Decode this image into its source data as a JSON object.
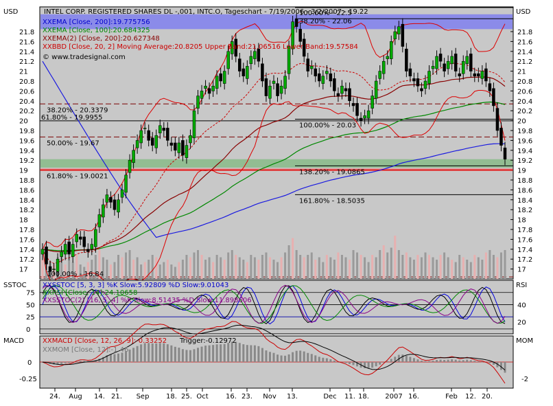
{
  "chart_data": {
    "type": "stock_candlestick_with_indicators",
    "currency": "USD",
    "price_panel": {
      "title": "INTEL CORP. REGISTERED SHARES DL -,001, INTC.O, Tageschart - 7/19/2006 - 3/2/2007 - 19.22",
      "ylim": [
        16.8,
        22.3
      ],
      "y_ticks": [
        17,
        17.2,
        17.4,
        17.6,
        17.8,
        18,
        18.2,
        18.4,
        18.6,
        18.8,
        19,
        19.2,
        19.4,
        19.6,
        19.8,
        20,
        20.2,
        20.4,
        20.6,
        20.8,
        21,
        21.2,
        21.4,
        21.6,
        21.8
      ],
      "legend": [
        {
          "text": "XXEMA [Close, 200]:19.775756",
          "color": "#0000cc"
        },
        {
          "text": "XXEMA [Close, 100]:20.684325",
          "color": "#008800"
        },
        {
          "text": "XXEMA(2) [Close, 200]:20.627348",
          "color": "#880000"
        },
        {
          "text": "XXBBD [Close, 20, 2] Moving Average:20.8205 Upper Band:21.06516 Lower Band:19.57584",
          "color": "#cc0000"
        }
      ],
      "credit": "© www.tradesignal.com",
      "fib_levels": [
        {
          "label": "38.20% - 20.3379",
          "value": 20.3379
        },
        {
          "label": "61.80% - 19.9955",
          "value": 19.9955
        },
        {
          "label": "50.00% - 19.67",
          "value": 19.67
        },
        {
          "label": "61.80% - 19.0021",
          "value": 19.0021
        },
        {
          "label": "100.00% - 20.03",
          "value": 20.03
        },
        {
          "label": "138.20% - 19.0865",
          "value": 19.0865
        },
        {
          "label": "161.80% - 18.5035",
          "value": 18.5035
        },
        {
          "label": "100.00% - 16.84",
          "value": 16.84
        },
        {
          "label": "100.00% - 22.5",
          "value": 22.5
        },
        {
          "label": "38.20% - 22.06",
          "value": 22.06
        }
      ],
      "bands": [
        {
          "from": 21.85,
          "to": 22.15,
          "color": "#8080ee"
        },
        {
          "from": 19.05,
          "to": 19.22,
          "color": "#88bb88"
        },
        {
          "from": 18.98,
          "to": 19.03,
          "color": "#ee6666"
        }
      ],
      "close": [
        17.4,
        17.1,
        16.95,
        17.0,
        17.2,
        17.35,
        17.5,
        17.3,
        17.5,
        17.7,
        17.6,
        17.45,
        17.35,
        17.5,
        17.8,
        18.1,
        18.3,
        18.5,
        18.35,
        18.2,
        18.4,
        18.6,
        18.9,
        19.2,
        19.4,
        19.6,
        19.8,
        19.85,
        19.6,
        19.5,
        19.7,
        19.9,
        19.8,
        19.6,
        19.5,
        19.4,
        19.55,
        19.3,
        19.5,
        19.7,
        20.2,
        20.5,
        20.6,
        20.7,
        20.55,
        20.7,
        20.9,
        20.8,
        21.0,
        21.4,
        21.6,
        21.3,
        21.0,
        20.9,
        21.1,
        21.3,
        21.4,
        21.2,
        20.8,
        20.5,
        20.7,
        20.8,
        20.5,
        20.7,
        20.9,
        21.5,
        22.0,
        21.9,
        21.6,
        21.3,
        21.0,
        21.1,
        20.9,
        20.8,
        20.9,
        21.0,
        20.8,
        20.6,
        20.5,
        20.7,
        20.6,
        20.4,
        20.3,
        20.1,
        20.0,
        20.1,
        20.2,
        20.5,
        20.8,
        21.0,
        21.2,
        21.3,
        21.6,
        21.8,
        21.9,
        21.5,
        21.0,
        20.9,
        20.8,
        20.7,
        20.6,
        20.8,
        21.0,
        21.1,
        21.3,
        21.2,
        21.0,
        21.2,
        21.3,
        21.0,
        20.9,
        21.2,
        21.3,
        21.0,
        20.9,
        20.9,
        21.0,
        20.8,
        20.6,
        20.3,
        19.8,
        19.5,
        19.22
      ],
      "volume": [
        0.4,
        0.55,
        0.35,
        0.3,
        0.45,
        0.5,
        0.3,
        0.4,
        0.35,
        0.5,
        0.3,
        0.25,
        0.35,
        0.4,
        0.5,
        0.6,
        0.45,
        0.4,
        0.3,
        0.35,
        0.5,
        0.45,
        0.55,
        0.6,
        0.4,
        0.45,
        0.3,
        0.35,
        0.4,
        0.5,
        0.45,
        0.3,
        0.35,
        0.4,
        0.3,
        0.25,
        0.35,
        0.4,
        0.5,
        0.45,
        0.55,
        0.6,
        0.5,
        0.4,
        0.45,
        0.35,
        0.5,
        0.45,
        0.4,
        0.55,
        0.6,
        0.5,
        0.45,
        0.4,
        0.35,
        0.5,
        0.45,
        0.4,
        0.5,
        0.55,
        0.45,
        0.4,
        0.35,
        0.45,
        0.55,
        0.7,
        0.85,
        0.6,
        0.5,
        0.45,
        0.5,
        0.55,
        0.4,
        0.45,
        0.35,
        0.5,
        0.45,
        0.4,
        0.55,
        0.5,
        0.45,
        0.4,
        0.6,
        0.55,
        0.5,
        0.45,
        0.35,
        0.5,
        0.45,
        0.6,
        0.7,
        0.55,
        0.65,
        0.9,
        0.6,
        0.5,
        0.55,
        0.45,
        0.4,
        0.5,
        0.45,
        0.55,
        0.5,
        0.45,
        0.4,
        0.5,
        0.55,
        0.45,
        0.4,
        0.35,
        0.5,
        0.45,
        0.4,
        0.35,
        0.5,
        0.45,
        0.4,
        0.55,
        0.6,
        0.5,
        0.45,
        0.55,
        0.6
      ]
    },
    "sstoc_panel": {
      "left_label": "SSTOC",
      "right_label": "RSI",
      "left_ticks": [
        0,
        25,
        50,
        75
      ],
      "right_ticks": [
        20,
        40
      ],
      "legend": [
        {
          "text": "XXSSTOC [5, 3, 3] %K Slow:5.92809 %D Slow:9.01043",
          "color": "#0000cc"
        },
        {
          "text": "XXRSI [Close, 14]:24.10658",
          "color": "#008800"
        },
        {
          "text": "XXSSTOC(2) [16, 5, 4] %K Slow:8.51435 %D Slow:11.898606",
          "color": "#880088"
        }
      ]
    },
    "macd_panel": {
      "left_label": "MACD",
      "right_label": "MOM",
      "left_ticks": [
        0,
        -0.25
      ],
      "right_tick": -2,
      "legend": [
        {
          "text": "XXMACD [Close, 12, 26, 9]:-0.33252",
          "color": "#cc0000"
        },
        {
          "text": "Trigger:-0.12972",
          "color": "#000000"
        },
        {
          "text": "XXMOM [Close, 12]:-1.46",
          "color": "#777777"
        }
      ]
    },
    "x_axis": {
      "tick_labels": [
        "24.",
        "Aug",
        "14.",
        "21.",
        "Sep",
        "18.",
        "25.",
        "Oct",
        "16.",
        "23.",
        "Nov",
        "13.",
        "Dec",
        "11.",
        "18.",
        "2007",
        "16.",
        "Feb",
        "12.",
        "20."
      ],
      "tick_positions": [
        80,
        110,
        145,
        170,
        208,
        250,
        272,
        295,
        337,
        360,
        393,
        426,
        481,
        510,
        530,
        574,
        603,
        658,
        686,
        710
      ]
    }
  }
}
